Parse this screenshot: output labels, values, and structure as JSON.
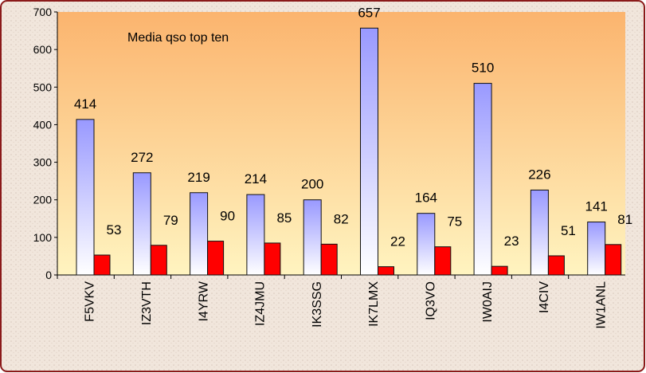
{
  "chart_data": {
    "type": "bar",
    "title": "Media qso top ten",
    "categories": [
      "F5VKV",
      "IZ3VTH",
      "I4YRW",
      "IZ4JMU",
      "IK3SSG",
      "IK7LMX",
      "IQ3VO",
      "IW0AIJ",
      "I4CIV",
      "IW1ANL"
    ],
    "series": [
      {
        "color": "#9999ff",
        "values": [
          414,
          272,
          219,
          214,
          200,
          657,
          164,
          510,
          226,
          141
        ]
      },
      {
        "color": "#ff0000",
        "values": [
          53,
          79,
          90,
          85,
          82,
          22,
          75,
          23,
          51,
          81
        ]
      }
    ],
    "ylim": [
      0,
      700
    ],
    "yticks": [
      0,
      100,
      200,
      300,
      400,
      500,
      600,
      700
    ],
    "grid": false
  }
}
